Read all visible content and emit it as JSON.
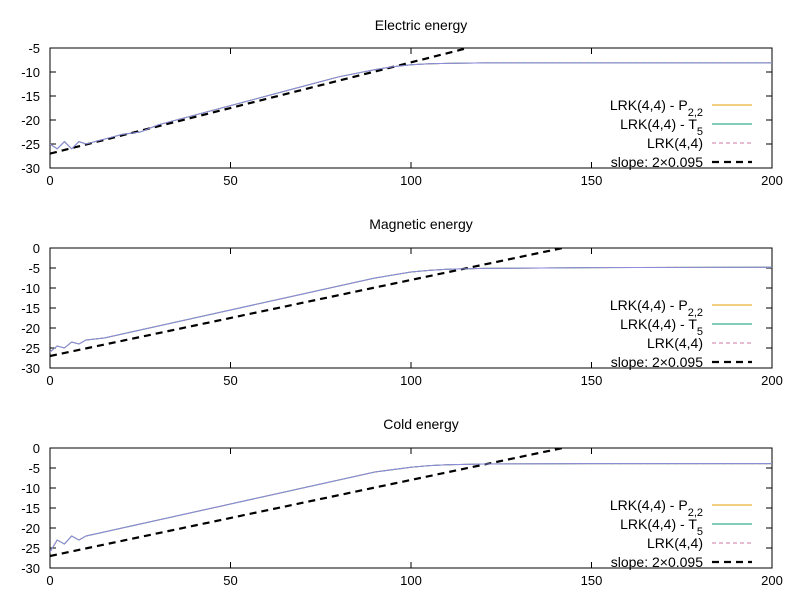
{
  "colors": {
    "lrk_p22": "#e69f00",
    "lrk_t5": "#009e73",
    "lrk": "#cc79a7",
    "slope": "#000000",
    "curve_overlay": "#8c8ce0"
  },
  "chart_data": [
    {
      "type": "line",
      "title": "Electric energy",
      "xlim": [
        0,
        200
      ],
      "ylim": [
        -30,
        -5
      ],
      "xticks": [
        "0",
        "50",
        "100",
        "150",
        "200"
      ],
      "yticks": [
        "-5",
        "-10",
        "-15",
        "-20",
        "-25",
        "-30"
      ],
      "legend_position": "right",
      "series": [
        {
          "name": "LRK(4,4) - P",
          "sub": "2,2",
          "style": "solid",
          "color": "#e69f00",
          "x": [
            0,
            2,
            4,
            6,
            8,
            10,
            15,
            20,
            25,
            30,
            40,
            50,
            60,
            70,
            80,
            90,
            95,
            100,
            105,
            110,
            120,
            150,
            200
          ],
          "y": [
            -25,
            -26,
            -24.5,
            -26,
            -24.5,
            -25,
            -24,
            -23,
            -22.5,
            -21,
            -19,
            -17,
            -15,
            -13,
            -11,
            -9.5,
            -8.9,
            -8.5,
            -8.3,
            -8.2,
            -8.1,
            -8.1,
            -8.1
          ]
        },
        {
          "name": "LRK(4,4) - T",
          "sub": "5",
          "style": "solid",
          "color": "#009e73",
          "x": [
            0,
            2,
            4,
            6,
            8,
            10,
            15,
            20,
            25,
            30,
            40,
            50,
            60,
            70,
            80,
            90,
            95,
            100,
            105,
            110,
            120,
            150,
            200
          ],
          "y": [
            -25,
            -26,
            -24.5,
            -26,
            -24.5,
            -25,
            -24,
            -23,
            -22.5,
            -21,
            -19,
            -17,
            -15,
            -13,
            -11,
            -9.5,
            -8.9,
            -8.5,
            -8.3,
            -8.2,
            -8.1,
            -8.1,
            -8.1
          ]
        },
        {
          "name": "LRK(4,4)",
          "sub": "",
          "style": "dashed",
          "color": "#cc79a7",
          "x": [
            0,
            2,
            4,
            6,
            8,
            10,
            15,
            20,
            25,
            30,
            40,
            50,
            60,
            70,
            80,
            90,
            95,
            100,
            105,
            110,
            120,
            150,
            200
          ],
          "y": [
            -25,
            -26,
            -24.5,
            -26,
            -24.5,
            -25,
            -24,
            -23,
            -22.5,
            -21,
            -19,
            -17,
            -15,
            -13,
            -11,
            -9.5,
            -8.9,
            -8.5,
            -8.3,
            -8.2,
            -8.1,
            -8.1,
            -8.1
          ]
        },
        {
          "name": "slope: 2×0.095",
          "sub": "",
          "style": "thick-dashed",
          "color": "#000000",
          "x": [
            0,
            115
          ],
          "y": [
            -27,
            -5.15
          ]
        }
      ]
    },
    {
      "type": "line",
      "title": "Magnetic energy",
      "xlim": [
        0,
        200
      ],
      "ylim": [
        -30,
        0
      ],
      "xticks": [
        "0",
        "50",
        "100",
        "150",
        "200"
      ],
      "yticks": [
        "0",
        "-5",
        "-10",
        "-15",
        "-20",
        "-25",
        "-30"
      ],
      "legend_position": "right",
      "series": [
        {
          "name": "LRK(4,4) - P",
          "sub": "2,2",
          "style": "solid",
          "color": "#e69f00",
          "x": [
            0,
            2,
            4,
            6,
            8,
            10,
            15,
            20,
            30,
            40,
            50,
            60,
            70,
            80,
            90,
            100,
            105,
            110,
            120,
            150,
            200
          ],
          "y": [
            -26,
            -24.5,
            -25,
            -23.5,
            -24,
            -23,
            -22.5,
            -21.5,
            -19.5,
            -17.5,
            -15.5,
            -13.5,
            -11.5,
            -9.5,
            -7.5,
            -6,
            -5.6,
            -5.3,
            -5.1,
            -4.9,
            -4.8
          ]
        },
        {
          "name": "LRK(4,4) - T",
          "sub": "5",
          "style": "solid",
          "color": "#009e73",
          "x": [
            0,
            2,
            4,
            6,
            8,
            10,
            15,
            20,
            30,
            40,
            50,
            60,
            70,
            80,
            90,
            100,
            105,
            110,
            120,
            150,
            200
          ],
          "y": [
            -26,
            -24.5,
            -25,
            -23.5,
            -24,
            -23,
            -22.5,
            -21.5,
            -19.5,
            -17.5,
            -15.5,
            -13.5,
            -11.5,
            -9.5,
            -7.5,
            -6,
            -5.6,
            -5.3,
            -5.1,
            -4.9,
            -4.8
          ]
        },
        {
          "name": "LRK(4,4)",
          "sub": "",
          "style": "dashed",
          "color": "#cc79a7",
          "x": [
            0,
            2,
            4,
            6,
            8,
            10,
            15,
            20,
            30,
            40,
            50,
            60,
            70,
            80,
            90,
            100,
            105,
            110,
            120,
            150,
            200
          ],
          "y": [
            -26,
            -24.5,
            -25,
            -23.5,
            -24,
            -23,
            -22.5,
            -21.5,
            -19.5,
            -17.5,
            -15.5,
            -13.5,
            -11.5,
            -9.5,
            -7.5,
            -6,
            -5.6,
            -5.3,
            -5.1,
            -4.9,
            -4.8
          ]
        },
        {
          "name": "slope: 2×0.095",
          "sub": "",
          "style": "thick-dashed",
          "color": "#000000",
          "x": [
            0,
            142
          ],
          "y": [
            -27,
            0
          ]
        }
      ]
    },
    {
      "type": "line",
      "title": "Cold energy",
      "xlim": [
        0,
        200
      ],
      "ylim": [
        -30,
        0
      ],
      "xticks": [
        "0",
        "50",
        "100",
        "150",
        "200"
      ],
      "yticks": [
        "0",
        "-5",
        "-10",
        "-15",
        "-20",
        "-25",
        "-30"
      ],
      "legend_position": "right",
      "series": [
        {
          "name": "LRK(4,4) - P",
          "sub": "2,2",
          "style": "solid",
          "color": "#e69f00",
          "x": [
            0,
            2,
            4,
            6,
            8,
            10,
            15,
            20,
            30,
            40,
            50,
            60,
            70,
            80,
            90,
            100,
            105,
            110,
            120,
            150,
            200
          ],
          "y": [
            -26,
            -23,
            -24,
            -22,
            -23,
            -22,
            -21,
            -20,
            -18,
            -16,
            -14,
            -12,
            -10,
            -8,
            -6,
            -4.8,
            -4.4,
            -4.2,
            -4,
            -3.9,
            -3.9
          ]
        },
        {
          "name": "LRK(4,4) - T",
          "sub": "5",
          "style": "solid",
          "color": "#009e73",
          "x": [
            0,
            2,
            4,
            6,
            8,
            10,
            15,
            20,
            30,
            40,
            50,
            60,
            70,
            80,
            90,
            100,
            105,
            110,
            120,
            150,
            200
          ],
          "y": [
            -26,
            -23,
            -24,
            -22,
            -23,
            -22,
            -21,
            -20,
            -18,
            -16,
            -14,
            -12,
            -10,
            -8,
            -6,
            -4.8,
            -4.4,
            -4.2,
            -4,
            -3.9,
            -3.9
          ]
        },
        {
          "name": "LRK(4,4)",
          "sub": "",
          "style": "dashed",
          "color": "#cc79a7",
          "x": [
            0,
            2,
            4,
            6,
            8,
            10,
            15,
            20,
            30,
            40,
            50,
            60,
            70,
            80,
            90,
            100,
            105,
            110,
            120,
            150,
            200
          ],
          "y": [
            -26,
            -23,
            -24,
            -22,
            -23,
            -22,
            -21,
            -20,
            -18,
            -16,
            -14,
            -12,
            -10,
            -8,
            -6,
            -4.8,
            -4.4,
            -4.2,
            -4,
            -3.9,
            -3.9
          ]
        },
        {
          "name": "slope: 2×0.095",
          "sub": "",
          "style": "thick-dashed",
          "color": "#000000",
          "x": [
            0,
            142
          ],
          "y": [
            -27,
            0
          ]
        }
      ]
    }
  ]
}
